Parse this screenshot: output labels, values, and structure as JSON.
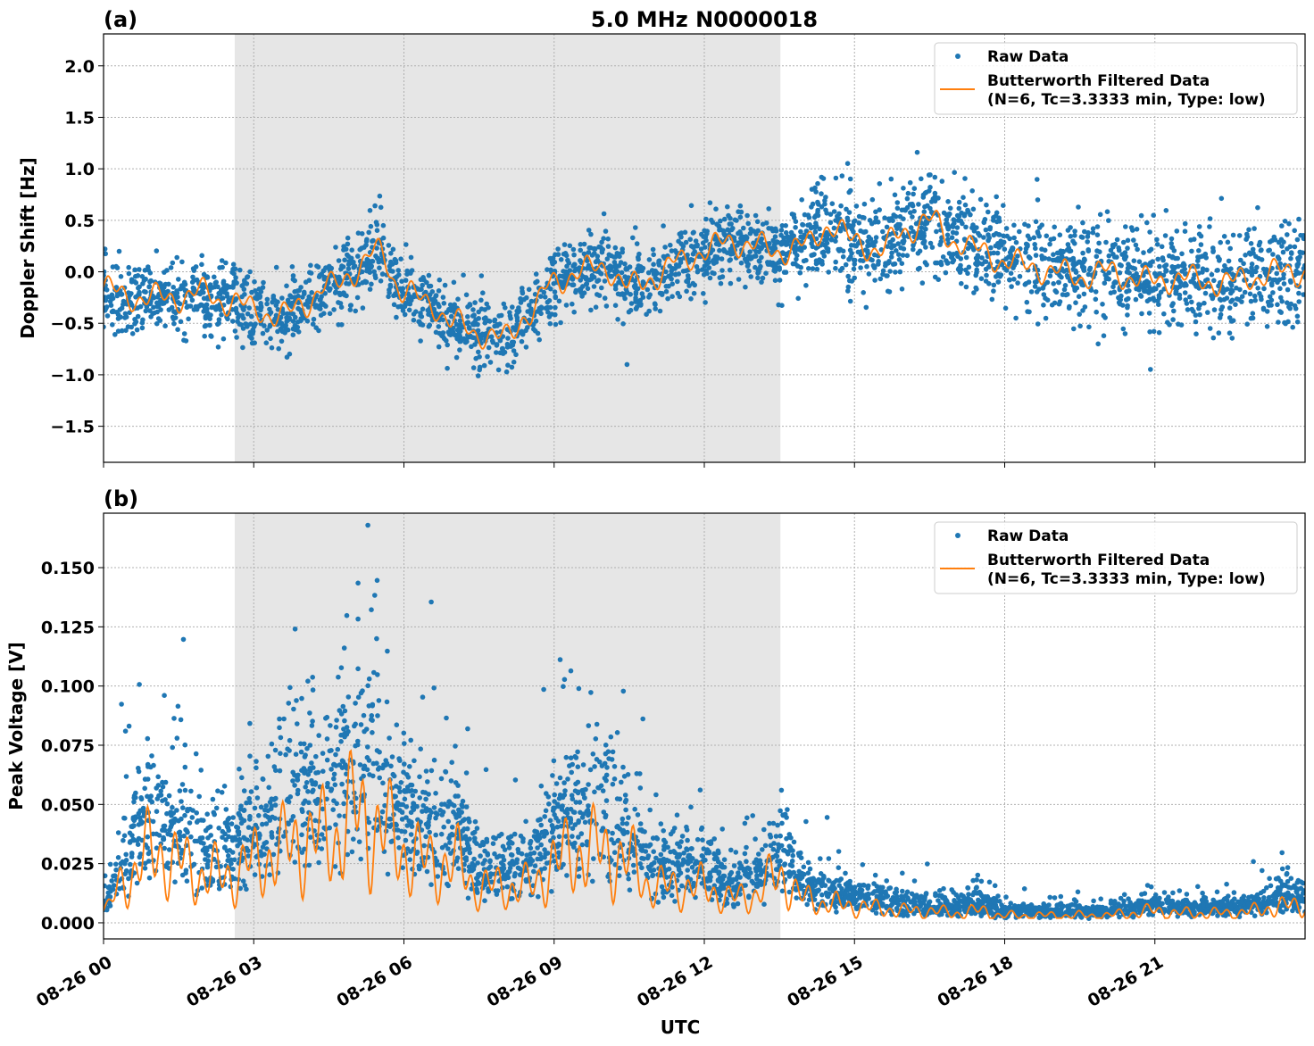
{
  "chart_data": [
    {
      "panel_label": "(a)",
      "title": "5.0 MHz N0000018",
      "type": "scatter+line",
      "ylabel": "Doppler Shift [Hz]",
      "ylim": [
        -1.85,
        2.31
      ],
      "yticks": [
        -1.5,
        -1.0,
        -0.5,
        0.0,
        0.5,
        1.0,
        1.5,
        2.0
      ],
      "ytick_labels": [
        "−1.5",
        "−1.0",
        "−0.5",
        "0.0",
        "0.5",
        "1.0",
        "1.5",
        "2.0"
      ],
      "xlim_hours": [
        0,
        24
      ],
      "shaded_hours": [
        2.62,
        13.52
      ],
      "grid": true,
      "legend_placement": "upper right",
      "legend": [
        "Raw Data",
        "Butterworth Filtered Data",
        "(N=6, Tc=3.3333 min, Type: low)"
      ],
      "x_hours": [
        0,
        0.5,
        1,
        1.5,
        2,
        2.5,
        3,
        3.5,
        4,
        4.5,
        5,
        5.5,
        6,
        6.5,
        7,
        7.5,
        8,
        8.5,
        9,
        9.5,
        10,
        10.5,
        11,
        11.5,
        12,
        12.5,
        13,
        13.5,
        14,
        14.5,
        15,
        15.5,
        16,
        16.5,
        17,
        17.5,
        18,
        18.5,
        19,
        19.5,
        20,
        20.5,
        21,
        21.5,
        22,
        22.5,
        23,
        23.5,
        24
      ],
      "series": [
        {
          "name": "Butterworth Filtered Data",
          "color": "#ff7f0e",
          "values": [
            -0.15,
            -0.25,
            -0.25,
            -0.25,
            -0.2,
            -0.3,
            -0.35,
            -0.45,
            -0.3,
            -0.15,
            0.0,
            0.2,
            -0.2,
            -0.3,
            -0.5,
            -0.6,
            -0.65,
            -0.4,
            -0.1,
            0.0,
            0.05,
            -0.15,
            -0.05,
            0.1,
            0.2,
            0.3,
            0.25,
            0.2,
            0.25,
            0.45,
            0.3,
            0.2,
            0.4,
            0.5,
            0.3,
            0.2,
            0.1,
            0.05,
            0.0,
            -0.05,
            0.0,
            -0.05,
            -0.1,
            -0.05,
            -0.1,
            -0.1,
            -0.05,
            0.0,
            0.0
          ]
        },
        {
          "name": "Raw Data",
          "color": "#1f77b4"
        }
      ]
    },
    {
      "panel_label": "(b)",
      "type": "scatter+line",
      "ylabel": "Peak Voltage [V]",
      "xlabel": "UTC",
      "ylim": [
        -0.0068,
        0.173
      ],
      "yticks": [
        0.0,
        0.025,
        0.05,
        0.075,
        0.1,
        0.125,
        0.15
      ],
      "ytick_labels": [
        "0.000",
        "0.025",
        "0.050",
        "0.075",
        "0.100",
        "0.125",
        "0.150"
      ],
      "xlim_hours": [
        0,
        24
      ],
      "xticks_hours": [
        0,
        3,
        6,
        9,
        12,
        15,
        18,
        21
      ],
      "xtick_labels": [
        "08-26 00",
        "08-26 03",
        "08-26 06",
        "08-26 09",
        "08-26 12",
        "08-26 15",
        "08-26 18",
        "08-26 21"
      ],
      "shaded_hours": [
        2.62,
        13.52
      ],
      "grid": true,
      "legend_placement": "upper right",
      "legend": [
        "Raw Data",
        "Butterworth Filtered Data",
        "(N=6, Tc=3.3333 min, Type: low)"
      ],
      "x_hours": [
        0,
        0.5,
        1,
        1.5,
        2,
        2.5,
        3,
        3.5,
        4,
        4.5,
        5,
        5.5,
        6,
        6.5,
        7,
        7.5,
        8,
        8.5,
        9,
        9.5,
        10,
        10.5,
        11,
        11.5,
        12,
        12.5,
        13,
        13.5,
        14,
        14.5,
        15,
        15.5,
        16,
        16.5,
        17,
        17.5,
        18,
        18.5,
        19,
        19.5,
        20,
        20.5,
        21,
        21.5,
        22,
        22.5,
        23,
        23.5,
        24
      ],
      "series": [
        {
          "name": "Butterworth Filtered Data",
          "color": "#ff7f0e",
          "values": [
            0.005,
            0.02,
            0.03,
            0.025,
            0.02,
            0.02,
            0.025,
            0.03,
            0.035,
            0.035,
            0.045,
            0.04,
            0.03,
            0.025,
            0.025,
            0.015,
            0.015,
            0.015,
            0.025,
            0.03,
            0.03,
            0.025,
            0.015,
            0.015,
            0.015,
            0.01,
            0.012,
            0.02,
            0.01,
            0.008,
            0.007,
            0.006,
            0.005,
            0.005,
            0.004,
            0.005,
            0.003,
            0.003,
            0.003,
            0.003,
            0.003,
            0.004,
            0.005,
            0.004,
            0.004,
            0.004,
            0.005,
            0.007,
            0.007
          ]
        },
        {
          "name": "Raw Data",
          "color": "#1f77b4"
        }
      ]
    }
  ]
}
